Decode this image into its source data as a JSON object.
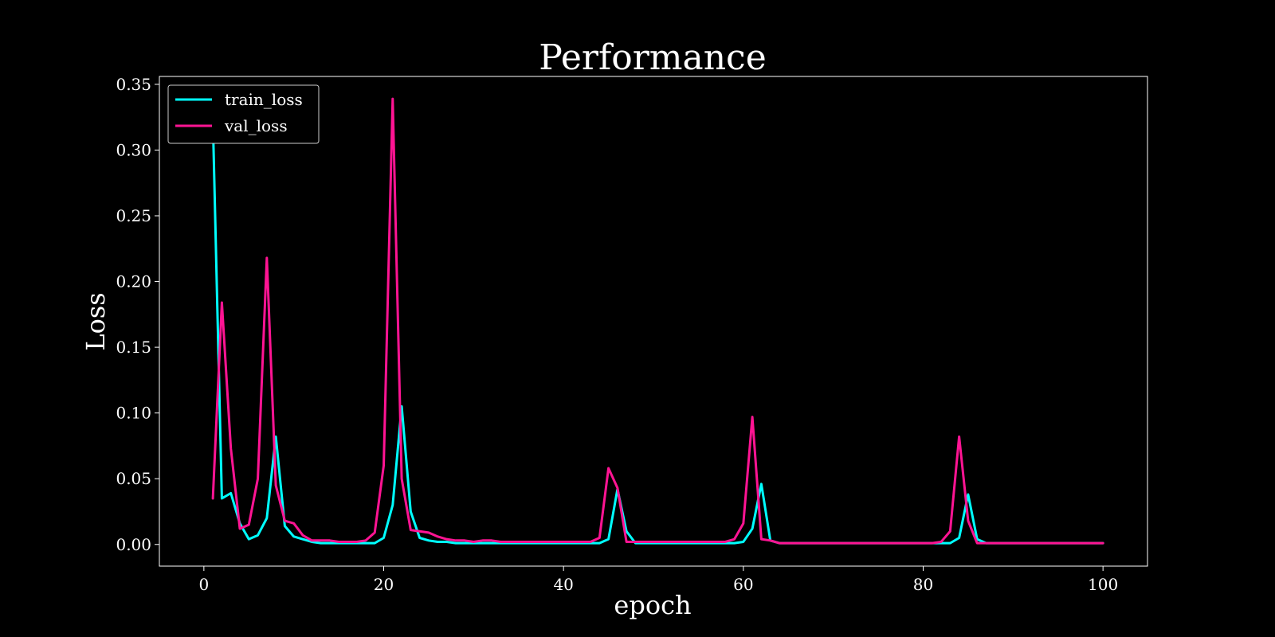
{
  "chart_data": {
    "type": "line",
    "title": "Performance",
    "xlabel": "epoch",
    "ylabel": "Loss",
    "xlim": [
      -4.95,
      104.95
    ],
    "ylim": [
      -0.0165,
      0.356
    ],
    "xticks": [
      0,
      20,
      40,
      60,
      80,
      100
    ],
    "yticks": [
      0.0,
      0.05,
      0.1,
      0.15,
      0.2,
      0.25,
      0.3,
      0.35
    ],
    "ytick_labels": [
      "0.00",
      "0.05",
      "0.10",
      "0.15",
      "0.20",
      "0.25",
      "0.30",
      "0.35"
    ],
    "grid": false,
    "background": "#000000",
    "legend": "top-left",
    "x": [
      1,
      2,
      3,
      4,
      5,
      6,
      7,
      8,
      9,
      10,
      11,
      12,
      13,
      14,
      15,
      16,
      17,
      18,
      19,
      20,
      21,
      22,
      23,
      24,
      25,
      26,
      27,
      28,
      29,
      30,
      31,
      32,
      33,
      34,
      35,
      36,
      37,
      38,
      39,
      40,
      41,
      42,
      43,
      44,
      45,
      46,
      47,
      48,
      49,
      50,
      51,
      52,
      53,
      54,
      55,
      56,
      57,
      58,
      59,
      60,
      61,
      62,
      63,
      64,
      65,
      66,
      67,
      68,
      69,
      70,
      71,
      72,
      73,
      74,
      75,
      76,
      77,
      78,
      79,
      80,
      81,
      82,
      83,
      84,
      85,
      86,
      87,
      88,
      89,
      90,
      91,
      92,
      93,
      94,
      95,
      96,
      97,
      98,
      99,
      100
    ],
    "series": [
      {
        "name": "train_loss",
        "color": "#00ffff",
        "values": [
          0.323,
          0.035,
          0.039,
          0.016,
          0.004,
          0.007,
          0.02,
          0.082,
          0.014,
          0.006,
          0.004,
          0.002,
          0.001,
          0.001,
          0.001,
          0.001,
          0.001,
          0.001,
          0.001,
          0.005,
          0.03,
          0.105,
          0.025,
          0.005,
          0.003,
          0.002,
          0.002,
          0.001,
          0.001,
          0.001,
          0.001,
          0.001,
          0.001,
          0.001,
          0.001,
          0.001,
          0.001,
          0.001,
          0.001,
          0.001,
          0.001,
          0.001,
          0.001,
          0.001,
          0.004,
          0.042,
          0.01,
          0.001,
          0.001,
          0.001,
          0.001,
          0.001,
          0.001,
          0.001,
          0.001,
          0.001,
          0.001,
          0.001,
          0.001,
          0.002,
          0.012,
          0.046,
          0.003,
          0.001,
          0.001,
          0.001,
          0.001,
          0.001,
          0.001,
          0.001,
          0.001,
          0.001,
          0.001,
          0.001,
          0.001,
          0.001,
          0.001,
          0.001,
          0.001,
          0.001,
          0.001,
          0.001,
          0.001,
          0.005,
          0.038,
          0.004,
          0.001,
          0.001,
          0.001,
          0.001,
          0.001,
          0.001,
          0.001,
          0.001,
          0.001,
          0.001,
          0.001,
          0.001,
          0.001,
          0.001
        ]
      },
      {
        "name": "val_loss",
        "color": "#ff1493",
        "values": [
          0.035,
          0.184,
          0.073,
          0.012,
          0.015,
          0.05,
          0.218,
          0.045,
          0.018,
          0.016,
          0.007,
          0.003,
          0.003,
          0.003,
          0.002,
          0.002,
          0.002,
          0.003,
          0.009,
          0.06,
          0.339,
          0.05,
          0.011,
          0.01,
          0.009,
          0.006,
          0.004,
          0.003,
          0.003,
          0.002,
          0.003,
          0.003,
          0.002,
          0.002,
          0.002,
          0.002,
          0.002,
          0.002,
          0.002,
          0.002,
          0.002,
          0.002,
          0.002,
          0.005,
          0.058,
          0.043,
          0.002,
          0.002,
          0.002,
          0.002,
          0.002,
          0.002,
          0.002,
          0.002,
          0.002,
          0.002,
          0.002,
          0.002,
          0.004,
          0.016,
          0.097,
          0.004,
          0.003,
          0.001,
          0.001,
          0.001,
          0.001,
          0.001,
          0.001,
          0.001,
          0.001,
          0.001,
          0.001,
          0.001,
          0.001,
          0.001,
          0.001,
          0.001,
          0.001,
          0.001,
          0.001,
          0.002,
          0.01,
          0.082,
          0.018,
          0.001,
          0.001,
          0.001,
          0.001,
          0.001,
          0.001,
          0.001,
          0.001,
          0.001,
          0.001,
          0.001,
          0.001,
          0.001,
          0.001,
          0.001
        ]
      }
    ]
  }
}
